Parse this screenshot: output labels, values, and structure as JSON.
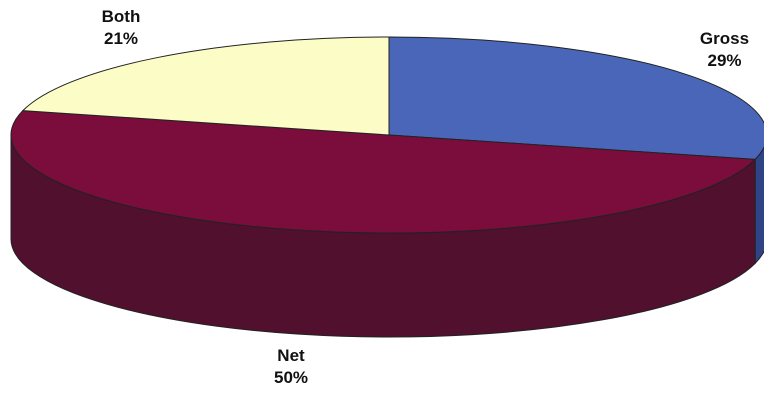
{
  "chart_data": {
    "type": "pie",
    "style": "3d",
    "slices": [
      {
        "label": "Gross",
        "percent_label": "29%",
        "value": 29,
        "color": "#4a66b8",
        "side_color": "#2f4484"
      },
      {
        "label": "Net",
        "percent_label": "50%",
        "value": 50,
        "color": "#7b0d3d",
        "side_color": "#50102e"
      },
      {
        "label": "Both",
        "percent_label": "21%",
        "value": 21,
        "color": "#fbfcc6",
        "side_color": "#c9ca96"
      }
    ],
    "legend": "none",
    "title": ""
  }
}
